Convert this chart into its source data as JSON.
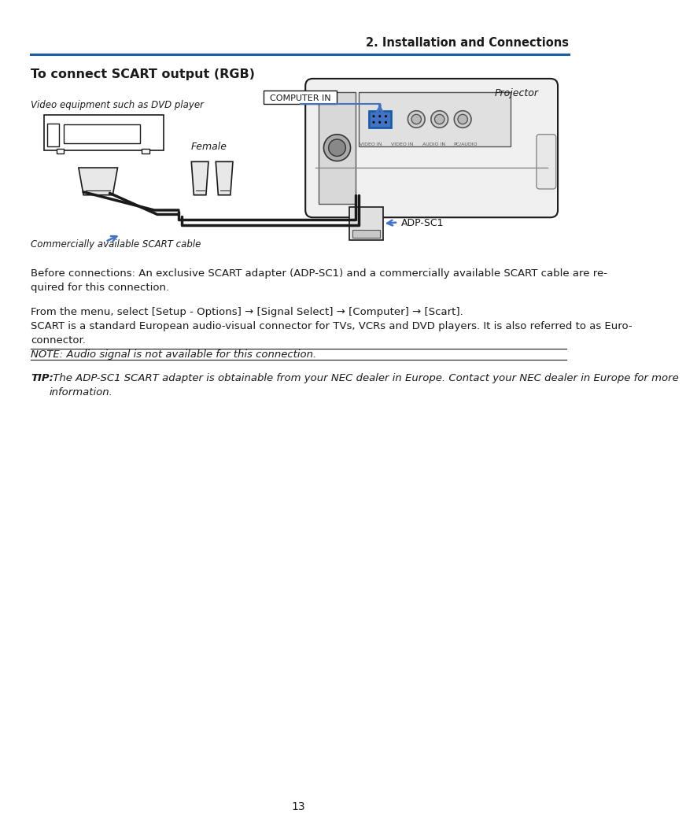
{
  "page_bg": "#ffffff",
  "header_text": "2. Installation and Connections",
  "header_color": "#1a1a1a",
  "header_line_color": "#1a5ea8",
  "section_title": "To connect SCART output (RGB)",
  "section_title_color": "#1a1a1a",
  "video_label": "Video equipment such as DVD player",
  "female_label": "Female",
  "computer_in_label": "COMPUTER IN",
  "projector_label": "Projector",
  "adp_label": "ADP-SC1",
  "scart_cable_label": "Commercially available SCART cable",
  "para1": "Before connections: An exclusive SCART adapter (ADP-SC1) and a commercially available SCART cable are re-\nquired for this connection.",
  "para2": "From the menu, select [Setup - Options] → [Signal Select] → [Computer] → [Scart].\nSCART is a standard European audio-visual connector for TVs, VCRs and DVD players. It is also referred to as Euro-\nconnector.",
  "note_text": "NOTE: Audio signal is not available for this connection.",
  "tip_bold": "TIP:",
  "tip_text": " The ADP-SC1 SCART adapter is obtainable from your NEC dealer in Europe. Contact your NEC dealer in Europe for more\ninformation.",
  "page_number": "13",
  "arrow_color": "#4472c4",
  "text_font_size": 9.5,
  "small_font_size": 8.5
}
